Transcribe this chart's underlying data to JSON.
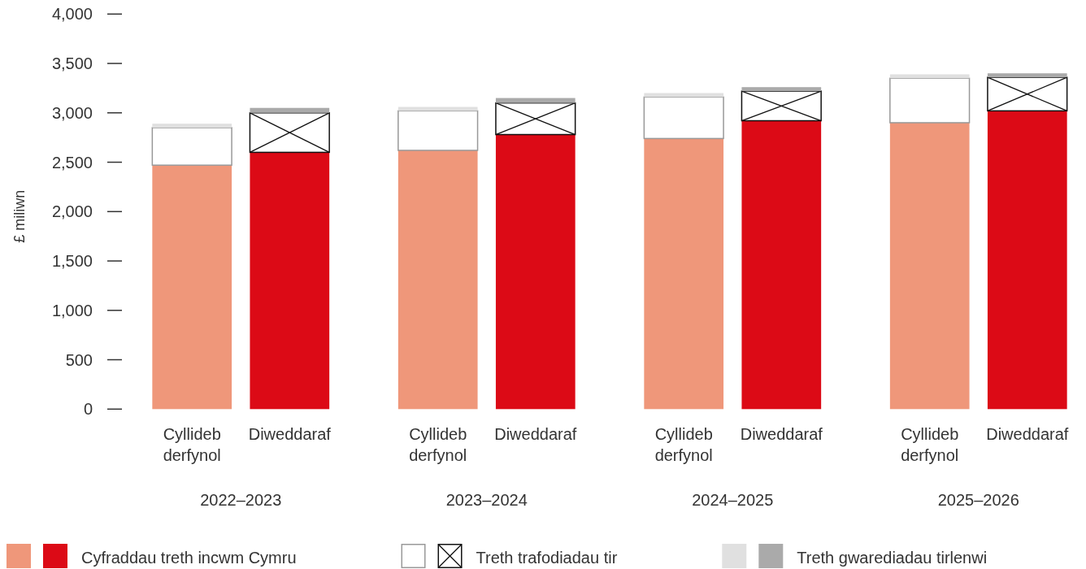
{
  "chart_data": {
    "type": "bar",
    "stacked": true,
    "ylabel": "£ miliwn",
    "categories": [
      "Cyllideb derfynol",
      "Diweddaraf",
      "Cyllideb derfynol",
      "Diweddaraf",
      "Cyllideb derfynol",
      "Diweddaraf",
      "Cyllideb derfynol",
      "Diweddaraf"
    ],
    "annotations": [
      "2022–2023",
      "2023–2024",
      "2024–2025",
      "2025–2026"
    ],
    "series": [
      {
        "name": "Cyfraddau treth incwm Cymru",
        "colors": [
          "#ef977a",
          "#dc0a16",
          "#ef977a",
          "#dc0a16",
          "#ef977a",
          "#dc0a16",
          "#ef977a",
          "#dc0a16"
        ],
        "values": [
          2470,
          2600,
          2620,
          2780,
          2740,
          2920,
          2900,
          3020
        ]
      },
      {
        "name": "Treth trafodiadau tir",
        "colors": [
          "#ffffff",
          "#ffffff",
          "#ffffff",
          "#ffffff",
          "#ffffff",
          "#ffffff",
          "#ffffff",
          "#ffffff"
        ],
        "values": [
          380,
          400,
          400,
          320,
          420,
          300,
          450,
          340
        ]
      },
      {
        "name": "Treth gwarediadau tirlenwi",
        "colors": [
          "#e0e0e0",
          "#aaaaaa",
          "#e0e0e0",
          "#aaaaaa",
          "#e0e0e0",
          "#aaaaaa",
          "#e0e0e0",
          "#aaaaaa"
        ],
        "values": [
          40,
          50,
          40,
          50,
          40,
          40,
          40,
          40
        ]
      }
    ],
    "ylim": [
      0,
      4000
    ],
    "yticks": [
      0,
      500,
      {
        "value": 1000,
        "label": "1,000"
      },
      {
        "value": 1500,
        "label": "1,500"
      },
      {
        "value": 2000,
        "label": "2,000"
      },
      {
        "value": 2500,
        "label": "2,500"
      },
      {
        "value": 3000,
        "label": "3,000"
      },
      {
        "value": 3500,
        "label": "3,500"
      },
      {
        "value": 4000,
        "label": "4,000"
      }
    ],
    "legend": "bottom"
  }
}
